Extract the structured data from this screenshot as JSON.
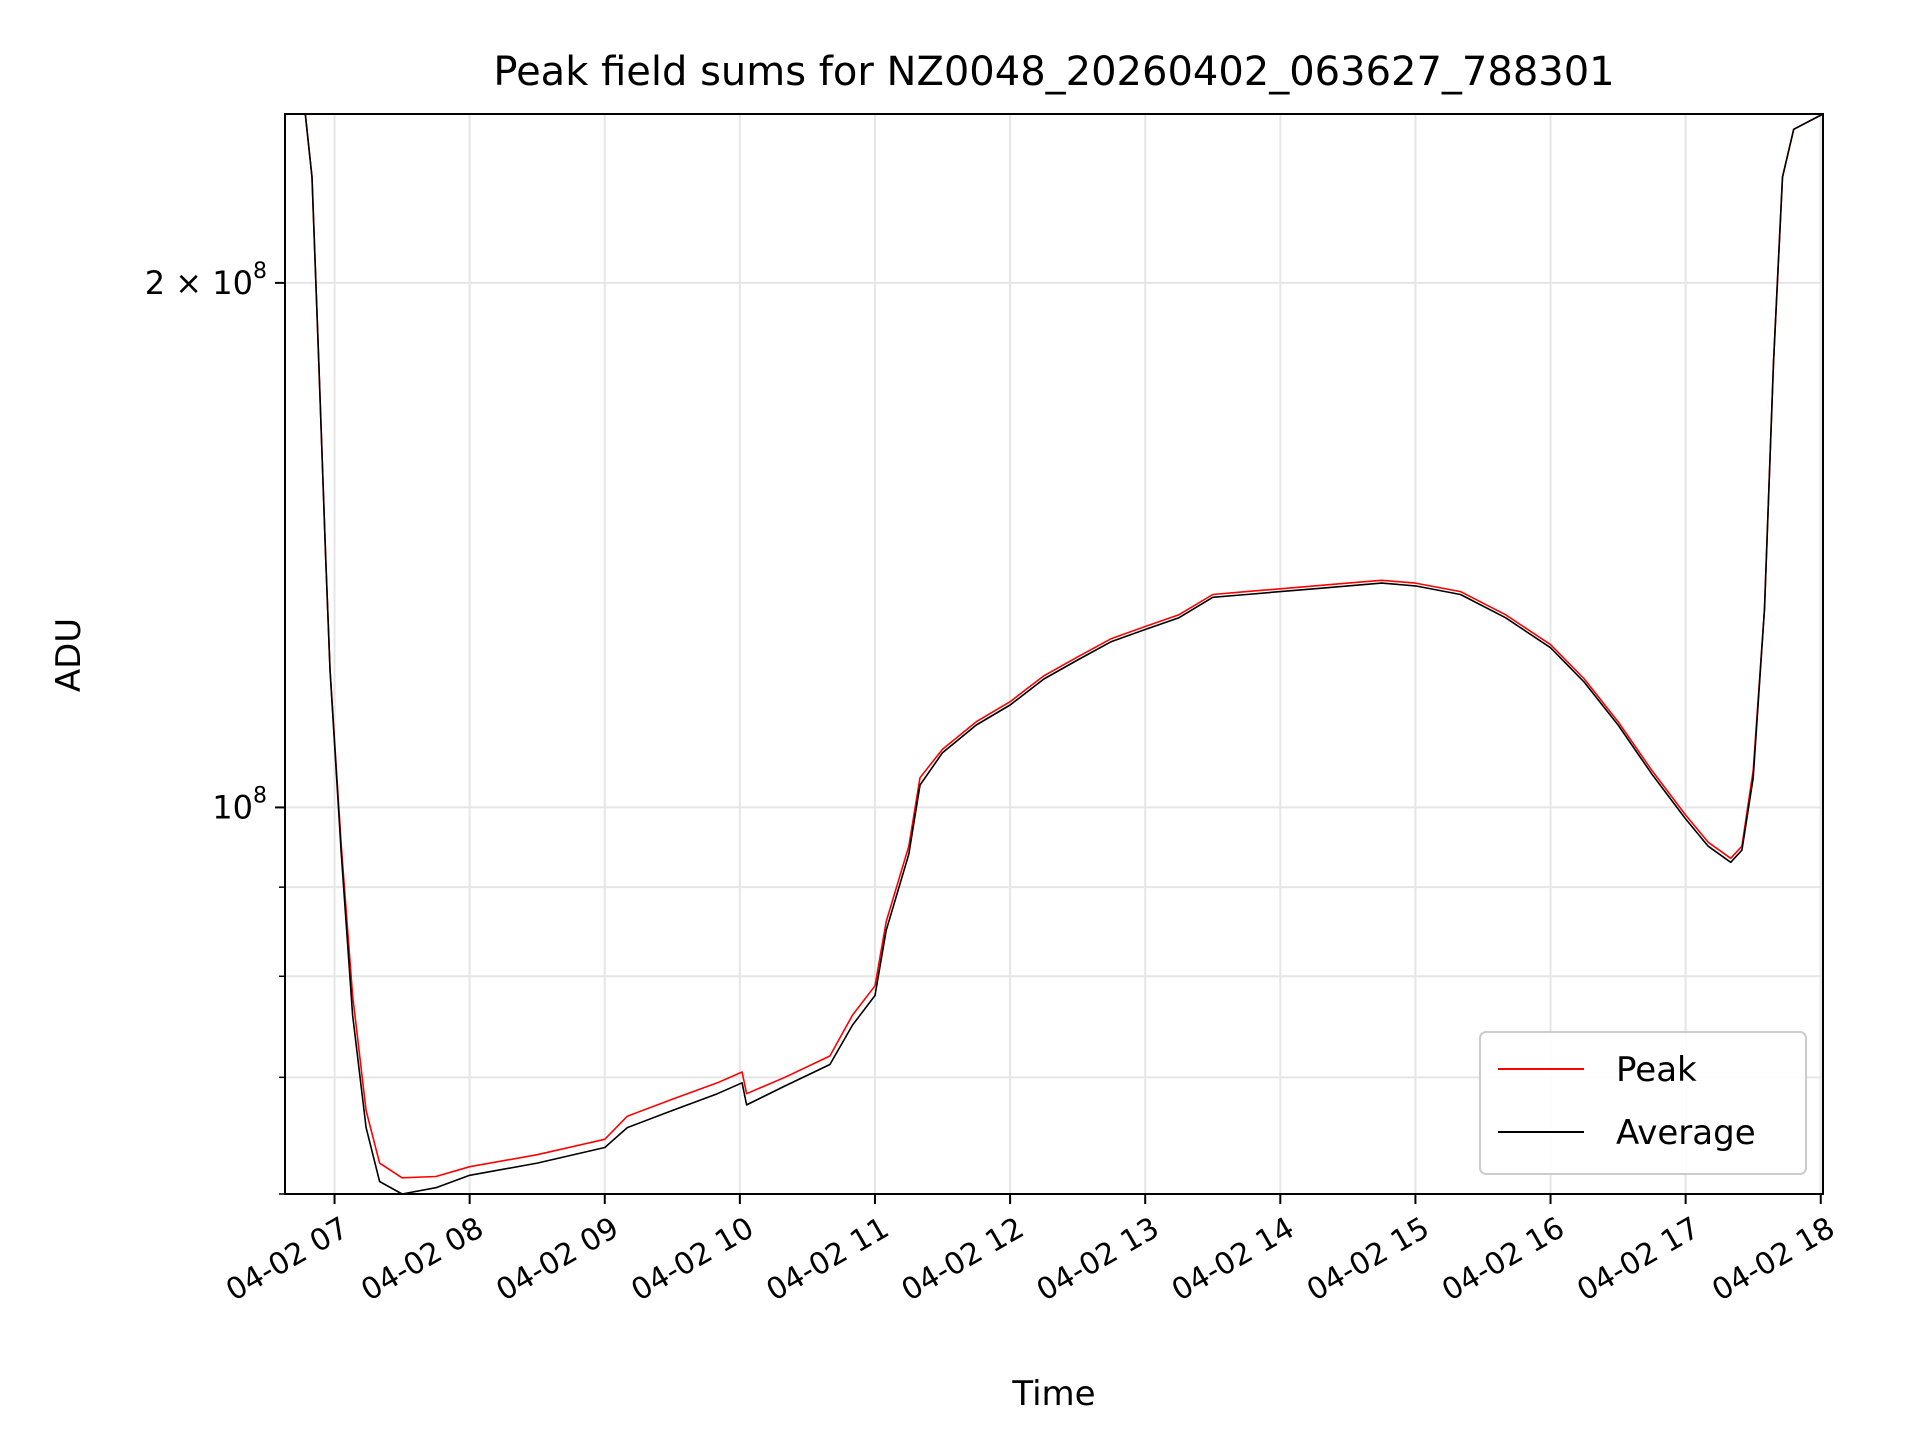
{
  "chart_data": {
    "type": "line",
    "title": "Peak field sums for NZ0048_20260402_063627_788301",
    "xlabel": "Time",
    "ylabel": "ADU",
    "yscale": "log",
    "xlim": [
      "04-02 06:38",
      "04-02 18:01"
    ],
    "ylim": [
      60000000,
      250000000
    ],
    "grid": true,
    "legend_position": "lower right",
    "x_ticks": [
      "04-02 07",
      "04-02 08",
      "04-02 09",
      "04-02 10",
      "04-02 11",
      "04-02 12",
      "04-02 13",
      "04-02 14",
      "04-02 15",
      "04-02 16",
      "04-02 17",
      "04-02 18"
    ],
    "y_ticks": [
      {
        "value": 100000000,
        "label": "10",
        "exp": "8"
      },
      {
        "value": 200000000,
        "label": "2 × 10",
        "exp": "8"
      }
    ],
    "y_minor_ticks": [
      60000000,
      70000000,
      80000000,
      90000000
    ],
    "series": [
      {
        "name": "Peak",
        "color": "#ff0000",
        "points": [
          [
            "04-02 06:38",
            250000000.0
          ],
          [
            "04-02 06:47",
            250000000.0
          ],
          [
            "04-02 06:50",
            230000000.0
          ],
          [
            "04-02 06:53",
            180000000.0
          ],
          [
            "04-02 06:56",
            140000000.0
          ],
          [
            "04-02 06:58",
            120000000.0
          ],
          [
            "04-02 07:03",
            95000000.0
          ],
          [
            "04-02 07:08",
            78000000.0
          ],
          [
            "04-02 07:14",
            67000000.0
          ],
          [
            "04-02 07:20",
            62500000.0
          ],
          [
            "04-02 07:30",
            61300000.0
          ],
          [
            "04-02 07:45",
            61400000.0
          ],
          [
            "04-02 08:00",
            62200000.0
          ],
          [
            "04-02 08:30",
            63200000.0
          ],
          [
            "04-02 09:00",
            64500000.0
          ],
          [
            "04-02 09:10",
            66500000.0
          ],
          [
            "04-02 09:30",
            68000000.0
          ],
          [
            "04-02 09:50",
            69500000.0
          ],
          [
            "04-02 10:01",
            70500000.0
          ],
          [
            "04-02 10:03",
            68500000.0
          ],
          [
            "04-02 10:20",
            70000000.0
          ],
          [
            "04-02 10:40",
            72000000.0
          ],
          [
            "04-02 10:50",
            76000000.0
          ],
          [
            "04-02 11:00",
            79000000.0
          ],
          [
            "04-02 11:05",
            86000000.0
          ],
          [
            "04-02 11:15",
            95000000.0
          ],
          [
            "04-02 11:20",
            104000000.0
          ],
          [
            "04-02 11:30",
            108000000.0
          ],
          [
            "04-02 11:45",
            112000000.0
          ],
          [
            "04-02 12:00",
            115000000.0
          ],
          [
            "04-02 12:15",
            119000000.0
          ],
          [
            "04-02 12:30",
            122000000.0
          ],
          [
            "04-02 12:45",
            125000000.0
          ],
          [
            "04-02 13:00",
            127000000.0
          ],
          [
            "04-02 13:15",
            129000000.0
          ],
          [
            "04-02 13:30",
            132500000.0
          ],
          [
            "04-02 13:45",
            133000000.0
          ],
          [
            "04-02 14:00",
            133500000.0
          ],
          [
            "04-02 14:15",
            134000000.0
          ],
          [
            "04-02 14:30",
            134500000.0
          ],
          [
            "04-02 14:45",
            135000000.0
          ],
          [
            "04-02 15:00",
            134500000.0
          ],
          [
            "04-02 15:20",
            133000000.0
          ],
          [
            "04-02 15:40",
            129000000.0
          ],
          [
            "04-02 16:00",
            124000000.0
          ],
          [
            "04-02 16:15",
            118500000.0
          ],
          [
            "04-02 16:30",
            112000000.0
          ],
          [
            "04-02 16:45",
            105000000.0
          ],
          [
            "04-02 17:00",
            99000000.0
          ],
          [
            "04-02 17:10",
            95500000.0
          ],
          [
            "04-02 17:20",
            93500000.0
          ],
          [
            "04-02 17:25",
            95000000.0
          ],
          [
            "04-02 17:30",
            105000000.0
          ],
          [
            "04-02 17:35",
            130000000.0
          ],
          [
            "04-02 17:39",
            180000000.0
          ],
          [
            "04-02 17:43",
            230000000.0
          ],
          [
            "04-02 17:48",
            245000000.0
          ],
          [
            "04-02 18:01",
            250000000.0
          ]
        ]
      },
      {
        "name": "Average",
        "color": "#000000",
        "points": [
          [
            "04-02 06:38",
            250000000.0
          ],
          [
            "04-02 06:47",
            250000000.0
          ],
          [
            "04-02 06:50",
            230000000.0
          ],
          [
            "04-02 06:53",
            180000000.0
          ],
          [
            "04-02 06:56",
            140000000.0
          ],
          [
            "04-02 06:58",
            120000000.0
          ],
          [
            "04-02 07:03",
            94000000.0
          ],
          [
            "04-02 07:08",
            76000000.0
          ],
          [
            "04-02 07:14",
            65500000.0
          ],
          [
            "04-02 07:20",
            61000000.0
          ],
          [
            "04-02 07:30",
            60000000.0
          ],
          [
            "04-02 07:45",
            60500000.0
          ],
          [
            "04-02 08:00",
            61500000.0
          ],
          [
            "04-02 08:30",
            62500000.0
          ],
          [
            "04-02 09:00",
            63800000.0
          ],
          [
            "04-02 09:10",
            65500000.0
          ],
          [
            "04-02 09:30",
            67000000.0
          ],
          [
            "04-02 09:50",
            68500000.0
          ],
          [
            "04-02 10:01",
            69500000.0
          ],
          [
            "04-02 10:03",
            67500000.0
          ],
          [
            "04-02 10:20",
            69200000.0
          ],
          [
            "04-02 10:40",
            71200000.0
          ],
          [
            "04-02 10:50",
            75000000.0
          ],
          [
            "04-02 11:00",
            78000000.0
          ],
          [
            "04-02 11:05",
            85000000.0
          ],
          [
            "04-02 11:15",
            94000000.0
          ],
          [
            "04-02 11:20",
            103000000.0
          ],
          [
            "04-02 11:30",
            107500000.0
          ],
          [
            "04-02 11:45",
            111500000.0
          ],
          [
            "04-02 12:00",
            114500000.0
          ],
          [
            "04-02 12:15",
            118500000.0
          ],
          [
            "04-02 12:30",
            121500000.0
          ],
          [
            "04-02 12:45",
            124500000.0
          ],
          [
            "04-02 13:00",
            126500000.0
          ],
          [
            "04-02 13:15",
            128500000.0
          ],
          [
            "04-02 13:30",
            132000000.0
          ],
          [
            "04-02 13:45",
            132500000.0
          ],
          [
            "04-02 14:00",
            133000000.0
          ],
          [
            "04-02 14:15",
            133500000.0
          ],
          [
            "04-02 14:30",
            134000000.0
          ],
          [
            "04-02 14:45",
            134500000.0
          ],
          [
            "04-02 15:00",
            134000000.0
          ],
          [
            "04-02 15:20",
            132500000.0
          ],
          [
            "04-02 15:40",
            128500000.0
          ],
          [
            "04-02 16:00",
            123500000.0
          ],
          [
            "04-02 16:15",
            118000000.0
          ],
          [
            "04-02 16:30",
            111500000.0
          ],
          [
            "04-02 16:45",
            104500000.0
          ],
          [
            "04-02 17:00",
            98500000.0
          ],
          [
            "04-02 17:10",
            95000000.0
          ],
          [
            "04-02 17:20",
            93000000.0
          ],
          [
            "04-02 17:25",
            94500000.0
          ],
          [
            "04-02 17:30",
            104000000.0
          ],
          [
            "04-02 17:35",
            130000000.0
          ],
          [
            "04-02 17:39",
            180000000.0
          ],
          [
            "04-02 17:43",
            230000000.0
          ],
          [
            "04-02 17:48",
            245000000.0
          ],
          [
            "04-02 18:01",
            250000000.0
          ]
        ]
      }
    ]
  }
}
